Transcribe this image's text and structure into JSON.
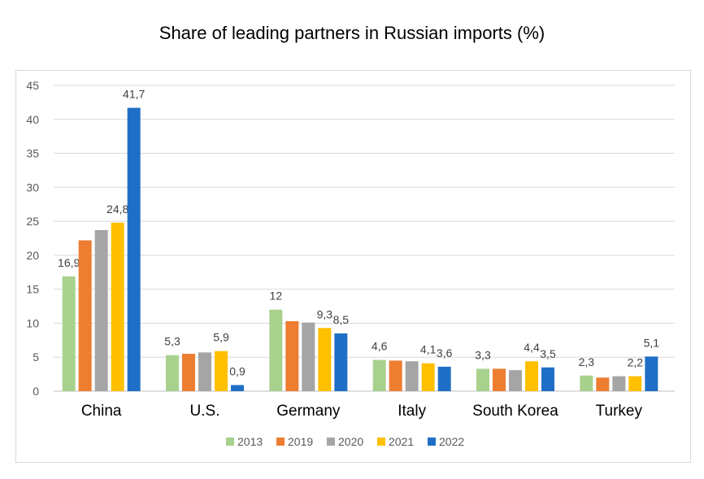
{
  "chart_data": {
    "type": "bar",
    "title": "Share of leading partners in Russian imports (%)",
    "categories": [
      "China",
      "U.S.",
      "Germany",
      "Italy",
      "South Korea",
      "Turkey"
    ],
    "series": [
      {
        "name": "2013",
        "color": "#a9d18e",
        "values": [
          16.9,
          5.3,
          12,
          4.6,
          3.3,
          2.3
        ],
        "labels": [
          "16,9",
          "5,3",
          "12",
          "4,6",
          "3,3",
          "2,3"
        ]
      },
      {
        "name": "2019",
        "color": "#ed7d31",
        "values": [
          22.2,
          5.5,
          10.3,
          4.5,
          3.3,
          2.0
        ],
        "labels": [
          "",
          "",
          "",
          "",
          "",
          ""
        ]
      },
      {
        "name": "2020",
        "color": "#a5a5a5",
        "values": [
          23.7,
          5.7,
          10.1,
          4.4,
          3.1,
          2.2
        ],
        "labels": [
          "",
          "",
          "",
          "",
          "",
          ""
        ]
      },
      {
        "name": "2021",
        "color": "#ffc000",
        "values": [
          24.8,
          5.9,
          9.3,
          4.1,
          4.4,
          2.2
        ],
        "labels": [
          "24,8",
          "5,9",
          "9,3",
          "4,1",
          "4,4",
          "2,2"
        ]
      },
      {
        "name": "2022",
        "color": "#1f6fc6",
        "values": [
          41.7,
          0.9,
          8.5,
          3.6,
          3.5,
          5.1
        ],
        "labels": [
          "41,7",
          "0,9",
          "8,5",
          "3,6",
          "3,5",
          "5,1"
        ]
      }
    ],
    "ylim": [
      0,
      45
    ],
    "yticks": [
      0,
      5,
      10,
      15,
      20,
      25,
      30,
      35,
      40,
      45
    ],
    "grid": true,
    "legend": "bottom"
  }
}
